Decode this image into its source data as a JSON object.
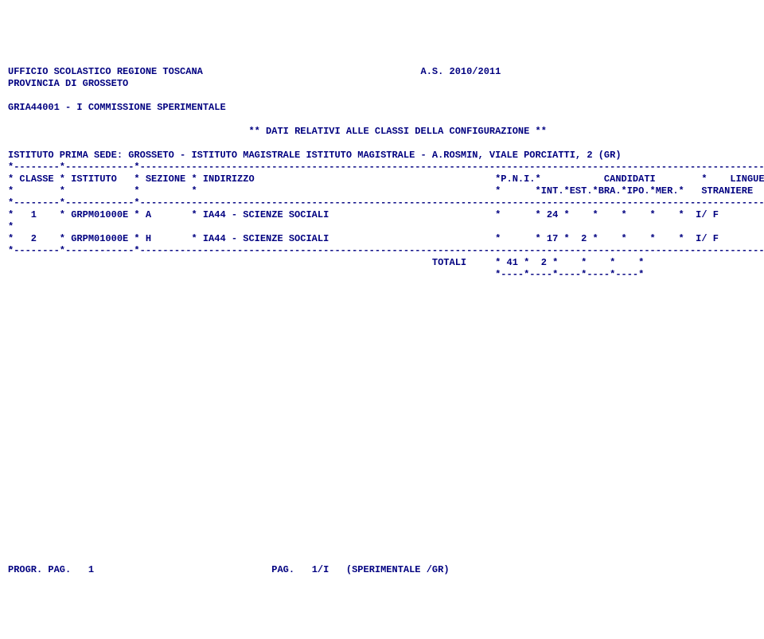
{
  "header": {
    "office": "UFFICIO SCOLASTICO REGIONE TOSCANA",
    "year_label": "A.S. 2010/2011",
    "province": "PROVINCIA DI GROSSETO",
    "commission": "GRIA44001 - I COMMISSIONE SPERIMENTALE",
    "subtitle": "** DATI RELATIVI ALLE CLASSI DELLA CONFIGURAZIONE **",
    "sede": "ISTITUTO PRIMA SEDE: GROSSETO - ISTITUTO MAGISTRALE ISTITUTO MAGISTRALE - A.ROSMIN, VIALE PORCIATTI, 2 (GR)"
  },
  "table": {
    "sep_line": "*--------*------------*-------------------------------------------------------------------------------------------------------------*",
    "header1": "* CLASSE * ISTITUTO   * SEZIONE * INDIRIZZO                                          *P.N.I.*           CANDIDATI        *    LINGUE    *",
    "header2": "*        *            *         *                                                    *      *INT.*EST.*BRA.*IPO.*MER.*   STRANIERE  *",
    "rows": [
      {
        "classe": "1",
        "istituto": "GRPM01000E",
        "sezione": "A",
        "indirizzo": "IA44 - SCIENZE SOCIALI",
        "pni": "",
        "int": "24",
        "est": "",
        "bra": "",
        "ipo": "",
        "mer": "",
        "lingue": "I/ F"
      },
      {
        "classe": "2",
        "istituto": "GRPM01000E",
        "sezione": "H",
        "indirizzo": "IA44 - SCIENZE SOCIALI",
        "pni": "",
        "int": "17",
        "est": "2",
        "bra": "",
        "ipo": "",
        "mer": "",
        "lingue": "I/ F"
      }
    ],
    "blank_row": "*                                                                                                                                   *",
    "totals": {
      "label": "TOTALI",
      "int": "41",
      "est": "2",
      "bra": "",
      "ipo": "",
      "mer": ""
    },
    "totals_sep": "*----*----*----*----*----*"
  },
  "footer": {
    "progr": "PROGR. PAG.   1",
    "pag": "PAG.   1/I   (SPERIMENTALE /GR)"
  }
}
